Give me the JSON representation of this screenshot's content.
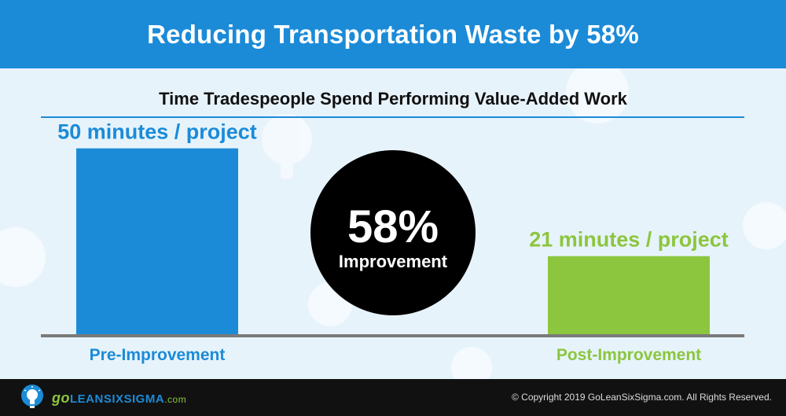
{
  "banner": {
    "title": "Reducing Transportation Waste by 58%"
  },
  "colors": {
    "banner": "#1b8bd8",
    "pre_bar": "#1b8bd8",
    "post_bar": "#8cc63f",
    "circle": "#000000",
    "baseline": "#7a7a7a",
    "background": "#e7f3fb"
  },
  "chart_data": {
    "type": "bar",
    "title": "Time Tradespeople Spend Performing Value-Added Work",
    "categories": [
      "Pre-Improvement",
      "Post-Improvement"
    ],
    "values": [
      50,
      21
    ],
    "value_labels": [
      "50 minutes / project",
      "21 minutes / project"
    ],
    "unit": "minutes / project",
    "ylim": [
      0,
      55
    ],
    "grid": false,
    "legend": "none",
    "callout": {
      "value": "58%",
      "label": "Improvement"
    }
  },
  "footer": {
    "logo": {
      "icon": "lightbulb-icon",
      "go": "go",
      "main": "LEANSIXSIGMA",
      "suffix": ".com"
    },
    "copyright": "© Copyright 2019 GoLeanSixSigma.com. All Rights Reserved."
  }
}
